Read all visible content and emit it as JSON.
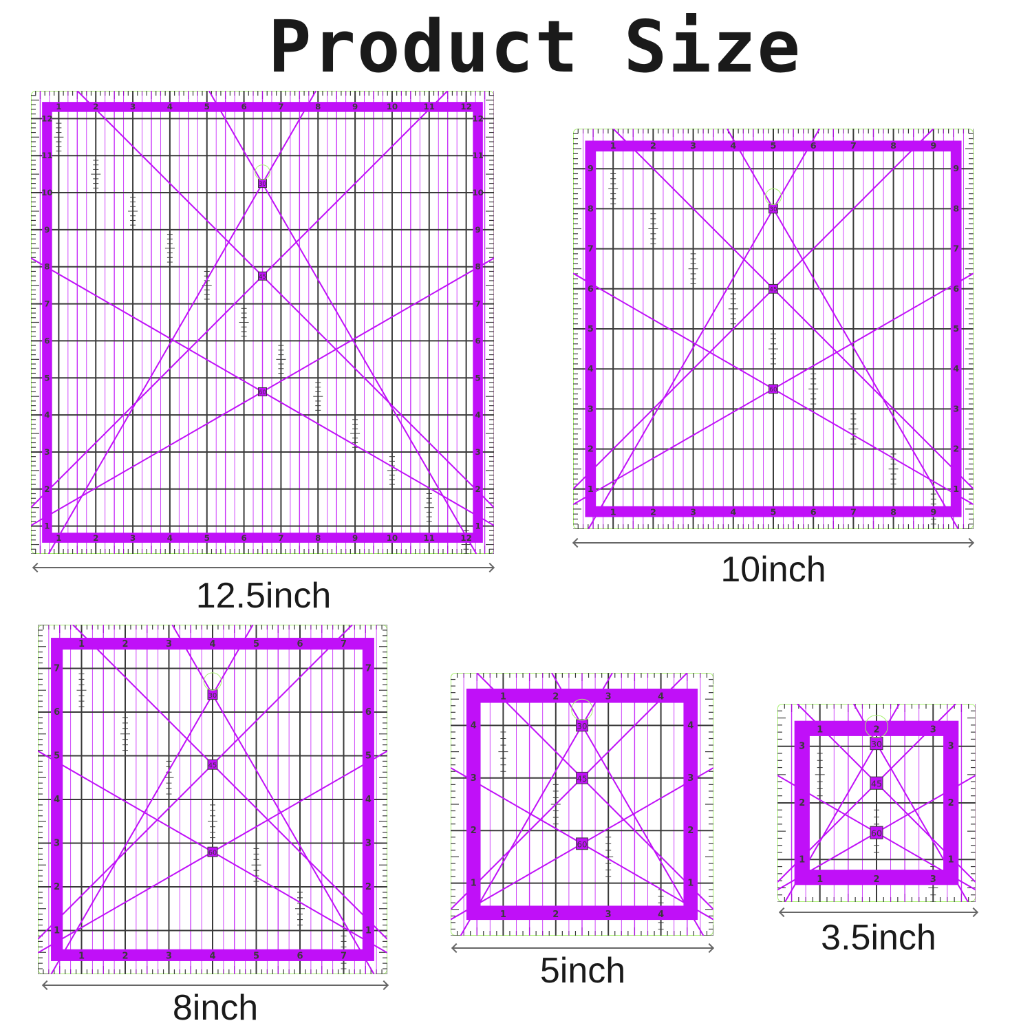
{
  "title": "Product Size",
  "colors": {
    "frame": "#c010f8",
    "grid": "#3a3a3a",
    "accent_line": "#c010f8",
    "edge": "#a8f070",
    "text": "#1a1a1a"
  },
  "angle_badges": [
    "30",
    "45",
    "60"
  ],
  "rulers": [
    {
      "size_label": "12.5inch",
      "inches": 12.5
    },
    {
      "size_label": "10inch",
      "inches": 10
    },
    {
      "size_label": "8inch",
      "inches": 8
    },
    {
      "size_label": "5inch",
      "inches": 5
    },
    {
      "size_label": "3.5inch",
      "inches": 3.5
    }
  ]
}
